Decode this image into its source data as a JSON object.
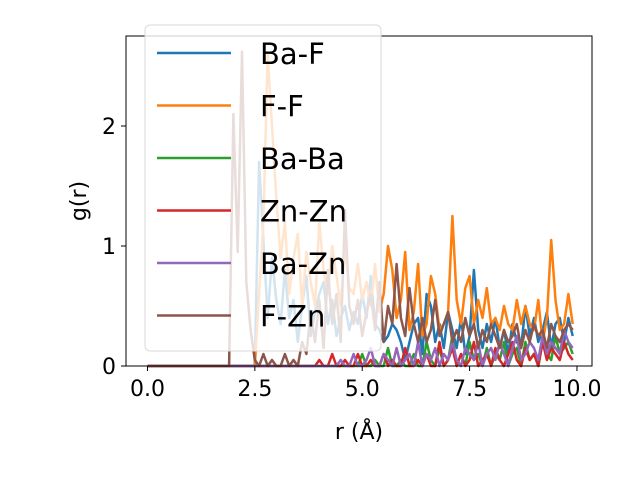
{
  "chart_data": {
    "type": "line",
    "title": "",
    "xlabel": "r (Å)",
    "ylabel": "g(r)",
    "xlim": [
      -0.5,
      10.35
    ],
    "ylim": [
      0,
      2.75
    ],
    "xticks": [
      "0.0",
      "2.5",
      "5.0",
      "7.5",
      "10.0"
    ],
    "yticks": [
      "0",
      "1",
      "2"
    ],
    "legend": {
      "placement": "upper-left",
      "alpha": 0.8
    },
    "x": [
      0.0,
      0.1,
      0.2,
      0.3,
      0.4,
      0.5,
      0.6,
      0.7,
      0.8,
      0.9,
      1.0,
      1.1,
      1.2,
      1.3,
      1.4,
      1.5,
      1.6,
      1.7,
      1.8,
      1.9,
      2.0,
      2.1,
      2.2,
      2.3,
      2.4,
      2.5,
      2.6,
      2.7,
      2.8,
      2.9,
      3.0,
      3.1,
      3.2,
      3.3,
      3.4,
      3.5,
      3.6,
      3.7,
      3.8,
      3.9,
      4.0,
      4.1,
      4.2,
      4.3,
      4.4,
      4.5,
      4.6,
      4.7,
      4.8,
      4.9,
      5.0,
      5.1,
      5.2,
      5.3,
      5.4,
      5.5,
      5.6,
      5.7,
      5.8,
      5.9,
      6.0,
      6.1,
      6.2,
      6.3,
      6.4,
      6.5,
      6.6,
      6.7,
      6.8,
      6.9,
      7.0,
      7.1,
      7.2,
      7.3,
      7.4,
      7.5,
      7.6,
      7.7,
      7.8,
      7.9,
      8.0,
      8.1,
      8.2,
      8.3,
      8.4,
      8.5,
      8.6,
      8.7,
      8.8,
      8.9,
      9.0,
      9.1,
      9.2,
      9.3,
      9.4,
      9.5,
      9.6,
      9.7,
      9.8,
      9.9
    ],
    "series": [
      {
        "name": "Ba-F",
        "color": "#1f77b4",
        "values": [
          0,
          0,
          0,
          0,
          0,
          0,
          0,
          0,
          0,
          0,
          0,
          0,
          0,
          0,
          0,
          0,
          0,
          0,
          0,
          0,
          0,
          0,
          0,
          0,
          0,
          0,
          1.7,
          1.05,
          0.4,
          0.9,
          0.55,
          0.35,
          0.8,
          0.4,
          0.55,
          0.2,
          0.5,
          0.75,
          0.25,
          0.45,
          0.6,
          0.7,
          0.35,
          0.55,
          0.25,
          0.4,
          0.5,
          0.3,
          0.45,
          0.35,
          0.6,
          0.4,
          0.75,
          0.35,
          0.3,
          0.2,
          0.25,
          0.35,
          0.3,
          0.2,
          0.05,
          0.2,
          0.35,
          0.4,
          0.1,
          0.6,
          0.5,
          0.2,
          0.35,
          0.15,
          0.45,
          0.3,
          0.15,
          0.4,
          0.1,
          0.25,
          0.8,
          0.3,
          0.15,
          0.35,
          0.2,
          0.4,
          0.15,
          0.3,
          0.1,
          0.35,
          0.2,
          0.15,
          0.5,
          0.25,
          0.4,
          0.2,
          0.3,
          0.45,
          0.15,
          0.35,
          0.4,
          0.2,
          0.4,
          0.25
        ]
      },
      {
        "name": "F-F",
        "color": "#ff7f0e",
        "values": [
          0,
          0,
          0,
          0,
          0,
          0,
          0,
          0,
          0,
          0,
          0,
          0,
          0,
          0,
          0,
          0,
          0,
          0,
          0,
          0,
          0,
          0,
          0,
          0,
          0,
          0,
          0.6,
          1.2,
          2.6,
          2.0,
          1.4,
          0.9,
          1.2,
          0.6,
          0.9,
          1.1,
          0.5,
          0.95,
          0.7,
          0.5,
          1.2,
          0.8,
          0.6,
          1.0,
          0.75,
          0.5,
          1.0,
          0.65,
          0.6,
          0.85,
          0.55,
          0.7,
          0.5,
          0.85,
          0.45,
          0.6,
          1.0,
          0.8,
          0.4,
          0.55,
          0.95,
          0.3,
          0.45,
          0.85,
          0.25,
          0.35,
          0.75,
          0.6,
          0.3,
          0.35,
          0.45,
          1.25,
          0.55,
          0.35,
          0.65,
          0.75,
          0.35,
          0.55,
          0.4,
          0.65,
          0.35,
          0.4,
          0.3,
          0.5,
          0.35,
          0.3,
          0.55,
          0.35,
          0.5,
          0.35,
          0.3,
          0.55,
          0.2,
          0.4,
          1.05,
          0.55,
          0.3,
          0.35,
          0.6,
          0.35
        ]
      },
      {
        "name": "Ba-Ba",
        "color": "#2ca02c",
        "values": [
          0,
          0,
          0,
          0,
          0,
          0,
          0,
          0,
          0,
          0,
          0,
          0,
          0,
          0,
          0,
          0,
          0,
          0,
          0,
          0,
          0,
          0,
          0,
          0,
          0,
          0,
          0,
          0,
          0,
          0,
          0,
          0,
          0,
          0,
          0,
          0,
          0,
          0,
          0,
          0,
          0,
          0,
          0,
          0,
          0,
          0,
          0,
          0,
          0,
          0,
          0.1,
          0.0,
          0.0,
          0.05,
          0.0,
          0.0,
          0.15,
          0.0,
          0.0,
          0.05,
          0.0,
          0.0,
          0.1,
          0.0,
          0.0,
          0.2,
          0.05,
          0.0,
          0.15,
          0.0,
          0.05,
          0.25,
          0.0,
          0.1,
          0.0,
          0.2,
          0.05,
          0.1,
          0.0,
          0.15,
          0.0,
          0.1,
          0.05,
          0.2,
          0.0,
          0.1,
          0.15,
          0.0,
          0.2,
          0.05,
          0.1,
          0.0,
          0.2,
          0.1,
          0.05,
          0.25,
          0.1,
          0.15,
          0.2,
          0.1
        ]
      },
      {
        "name": "Zn-Zn",
        "color": "#d62728",
        "values": [
          0,
          0,
          0,
          0,
          0,
          0,
          0,
          0,
          0,
          0,
          0,
          0,
          0,
          0,
          0,
          0,
          0,
          0,
          0,
          0,
          0,
          0,
          0,
          0,
          0,
          0,
          0,
          0,
          0,
          0,
          0,
          0,
          0,
          0,
          0,
          0,
          0,
          0,
          0,
          0,
          0.05,
          0.0,
          0.0,
          0.1,
          0.0,
          0.0,
          0.05,
          0.0,
          0.0,
          0.1,
          0.0,
          0.0,
          0.05,
          0.0,
          0.0,
          0.1,
          0.0,
          0.05,
          0.0,
          0.0,
          0.15,
          0.0,
          0.0,
          0.05,
          0.0,
          0.1,
          0.0,
          0.0,
          0.2,
          0.0,
          0.05,
          0.15,
          0.0,
          0.1,
          0.0,
          0.05,
          0.2,
          0.0,
          0.05,
          0.1,
          0.0,
          0.15,
          0.05,
          0.0,
          0.1,
          0.2,
          0.05,
          0.0,
          0.15,
          0.05,
          0.1,
          0.0,
          0.2,
          0.05,
          0.15,
          0.1,
          0.05,
          0.2,
          0.1,
          0.05
        ]
      },
      {
        "name": "Ba-Zn",
        "color": "#9467bd",
        "values": [
          0,
          0,
          0,
          0,
          0,
          0,
          0,
          0,
          0,
          0,
          0,
          0,
          0,
          0,
          0,
          0,
          0,
          0,
          0,
          0,
          0,
          0,
          0,
          0,
          0,
          0,
          0,
          0,
          0,
          0,
          0,
          0,
          0,
          0,
          0,
          0,
          0,
          0,
          0,
          0,
          0,
          0,
          0,
          0,
          0,
          0.05,
          0.0,
          0.0,
          0.1,
          0.0,
          0.0,
          0.05,
          0.15,
          0.0,
          0.0,
          0.1,
          0.05,
          0.0,
          0.15,
          0.0,
          0.05,
          0.1,
          0.0,
          0.2,
          0.0,
          0.1,
          0.05,
          0.15,
          0.0,
          0.1,
          0.05,
          0.2,
          0.05,
          0.0,
          0.15,
          0.1,
          0.05,
          0.2,
          0.0,
          0.1,
          0.15,
          0.05,
          0.2,
          0.1,
          0.0,
          0.15,
          0.25,
          0.05,
          0.1,
          0.2,
          0.15,
          0.05,
          0.25,
          0.1,
          0.2,
          0.15,
          0.1,
          0.3,
          0.2,
          0.15
        ]
      },
      {
        "name": "F-Zn",
        "color": "#8c564b",
        "values": [
          0,
          0,
          0,
          0,
          0,
          0,
          0,
          0,
          0,
          0,
          0,
          0,
          0,
          0,
          0,
          0,
          0,
          0,
          0,
          0,
          2.1,
          0.95,
          2.62,
          0.7,
          0.3,
          0.05,
          0.0,
          0.1,
          0.0,
          0.05,
          0.0,
          0.0,
          0.1,
          0.0,
          0.05,
          0.0,
          0.2,
          0.1,
          0.45,
          0.2,
          0.55,
          0.15,
          0.8,
          0.35,
          0.6,
          0.2,
          1.3,
          0.5,
          0.35,
          0.55,
          0.25,
          0.45,
          0.6,
          0.3,
          0.7,
          0.2,
          0.5,
          0.35,
          0.85,
          0.4,
          0.25,
          0.65,
          0.35,
          0.2,
          0.4,
          0.2,
          0.3,
          0.55,
          0.25,
          0.35,
          0.45,
          0.2,
          0.3,
          0.2,
          0.4,
          0.25,
          0.35,
          0.15,
          0.3,
          0.2,
          0.35,
          0.25,
          0.15,
          0.3,
          0.2,
          0.25,
          0.35,
          0.15,
          0.3,
          0.2,
          0.35,
          0.25,
          0.3,
          0.15,
          0.35,
          0.25,
          0.2,
          0.3,
          0.35,
          0.3
        ]
      }
    ]
  }
}
